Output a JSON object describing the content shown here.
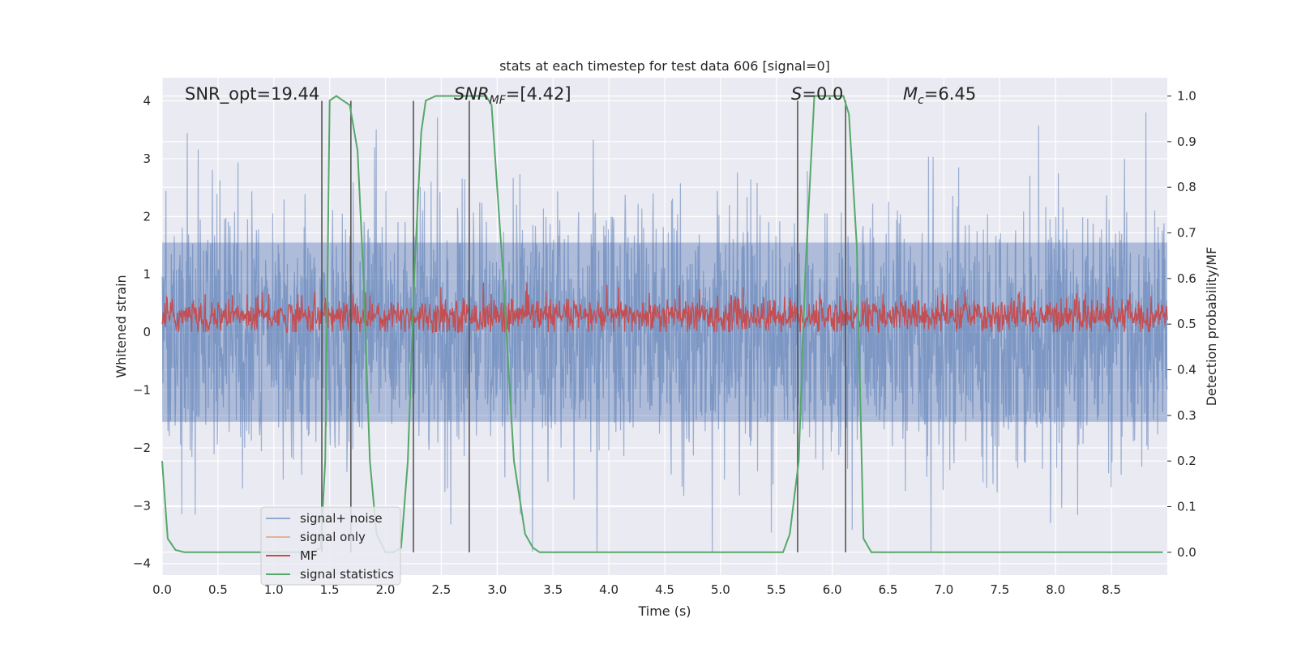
{
  "chart_data": {
    "type": "line",
    "title": "stats at each timestep for test data 606 [signal=0]",
    "xlabel": "Time (s)",
    "ylabel": "Whitened strain",
    "ylabel_right": "Detection probability/MF",
    "xlim": [
      0.0,
      9.0
    ],
    "ylim": [
      -4.2,
      4.4
    ],
    "ylim_right": [
      -0.05,
      1.04
    ],
    "xticks": [
      "0.0",
      "0.5",
      "1.0",
      "1.5",
      "2.0",
      "2.5",
      "3.0",
      "3.5",
      "4.0",
      "4.5",
      "5.0",
      "5.5",
      "6.0",
      "6.5",
      "7.0",
      "7.5",
      "8.0",
      "8.5"
    ],
    "yticks": [
      "4",
      "3",
      "2",
      "1",
      "0",
      "−1",
      "−2",
      "−3",
      "−4"
    ],
    "yticks_right": [
      "1.0",
      "0.9",
      "0.8",
      "0.7",
      "0.6",
      "0.5",
      "0.4",
      "0.3",
      "0.2",
      "0.1",
      "0.0"
    ],
    "annotations": {
      "snr_opt": "SNR_opt=19.44",
      "snr_mf_main": "SNR",
      "snr_mf_sub": "MF",
      "snr_mf_value": "=[4.42]",
      "s_main": "S",
      "s_value": "=0.0",
      "mc_main": "M",
      "mc_sub": "c",
      "mc_value": "=6.45"
    },
    "grid": true,
    "legend_position": "lower-left",
    "colors": {
      "background": "#eaeaf2",
      "grid": "#ffffff",
      "noise": "#4c72b0",
      "signal_only": "#dd8452",
      "mf": "#c44e52",
      "stats": "#55a868",
      "vlines": "#555555"
    },
    "series": [
      {
        "name": "signal+ noise",
        "kind": "noise",
        "amplitude_range": [
          -3.8,
          3.8
        ]
      },
      {
        "name": "signal only",
        "kind": "flat",
        "values": []
      },
      {
        "name": "MF",
        "kind": "noise",
        "amplitude_range": [
          0.0,
          1.0
        ]
      },
      {
        "name": "signal statistics",
        "axis": "right",
        "x": [
          0.0,
          0.05,
          0.12,
          0.2,
          1.35,
          1.42,
          1.46,
          1.5,
          1.56,
          1.62,
          1.68,
          1.75,
          1.8,
          1.86,
          1.92,
          2.0,
          2.07,
          2.14,
          2.2,
          2.26,
          2.32,
          2.36,
          2.45,
          2.9,
          2.95,
          3.05,
          3.15,
          3.25,
          3.32,
          3.38,
          3.45,
          3.5,
          5.5,
          5.56,
          5.62,
          5.7,
          5.76,
          5.84,
          6.1,
          6.15,
          6.22,
          6.28,
          6.35,
          8.96
        ],
        "values": [
          0.2,
          0.03,
          0.005,
          0.0,
          0.0,
          0.01,
          0.2,
          0.99,
          1.0,
          0.99,
          0.98,
          0.88,
          0.62,
          0.2,
          0.04,
          0.0,
          0.0,
          0.01,
          0.2,
          0.62,
          0.92,
          0.99,
          1.0,
          1.0,
          0.98,
          0.62,
          0.2,
          0.04,
          0.01,
          0.0,
          0.0,
          0.0,
          0.0,
          0.0,
          0.04,
          0.2,
          0.62,
          1.0,
          1.0,
          0.96,
          0.67,
          0.03,
          0.0,
          0.0
        ]
      }
    ],
    "vertical_lines_x": [
      1.43,
      1.69,
      2.25,
      2.75,
      5.69,
      6.12
    ]
  }
}
